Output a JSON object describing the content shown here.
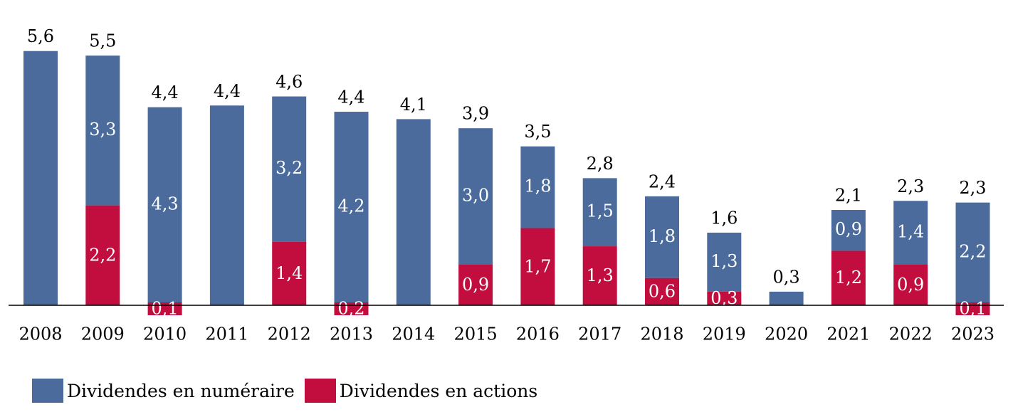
{
  "chart_data": {
    "type": "bar",
    "stacked": true,
    "title": "",
    "xlabel": "",
    "ylabel": "",
    "ylim": [
      -0.1,
      5.6
    ],
    "grid": false,
    "legend_position": "bottom-left",
    "categories": [
      "2008",
      "2009",
      "2010",
      "2011",
      "2012",
      "2013",
      "2014",
      "2015",
      "2016",
      "2017",
      "2018",
      "2019",
      "2020",
      "2021",
      "2022",
      "2023"
    ],
    "totals": [
      "5,6",
      "5,5",
      "4,4",
      "4,4",
      "4,6",
      "4,4",
      "4,1",
      "3,9",
      "3,5",
      "2,8",
      "2,4",
      "1,6",
      "0,3",
      "2,1",
      "2,3",
      "2,3"
    ],
    "series": [
      {
        "name": "Dividendes en numéraire",
        "color": "#4a6b9b",
        "values": [
          5.6,
          3.3,
          4.3,
          4.4,
          3.2,
          4.2,
          4.1,
          3.0,
          1.8,
          1.5,
          1.8,
          1.3,
          0.3,
          0.9,
          1.4,
          2.2
        ],
        "labels": [
          "",
          "3,3",
          "4,3",
          "",
          "3,2",
          "4,2",
          "",
          "3,0",
          "1,8",
          "1,5",
          "1,8",
          "1,3",
          "",
          "0,9",
          "1,4",
          "2,2"
        ]
      },
      {
        "name": "Dividendes en actions",
        "color": "#c20e3f",
        "values": [
          0,
          2.2,
          0.1,
          0,
          1.4,
          0.2,
          0,
          0.9,
          1.7,
          1.3,
          0.6,
          0.3,
          0,
          1.2,
          0.9,
          0.1
        ],
        "labels": [
          "",
          "2,2",
          "0,1",
          "",
          "1,4",
          "0,2",
          "",
          "0,9",
          "1,7",
          "1,3",
          "0,6",
          "0,3",
          "",
          "1,2",
          "0,9",
          "0,1"
        ]
      }
    ]
  }
}
